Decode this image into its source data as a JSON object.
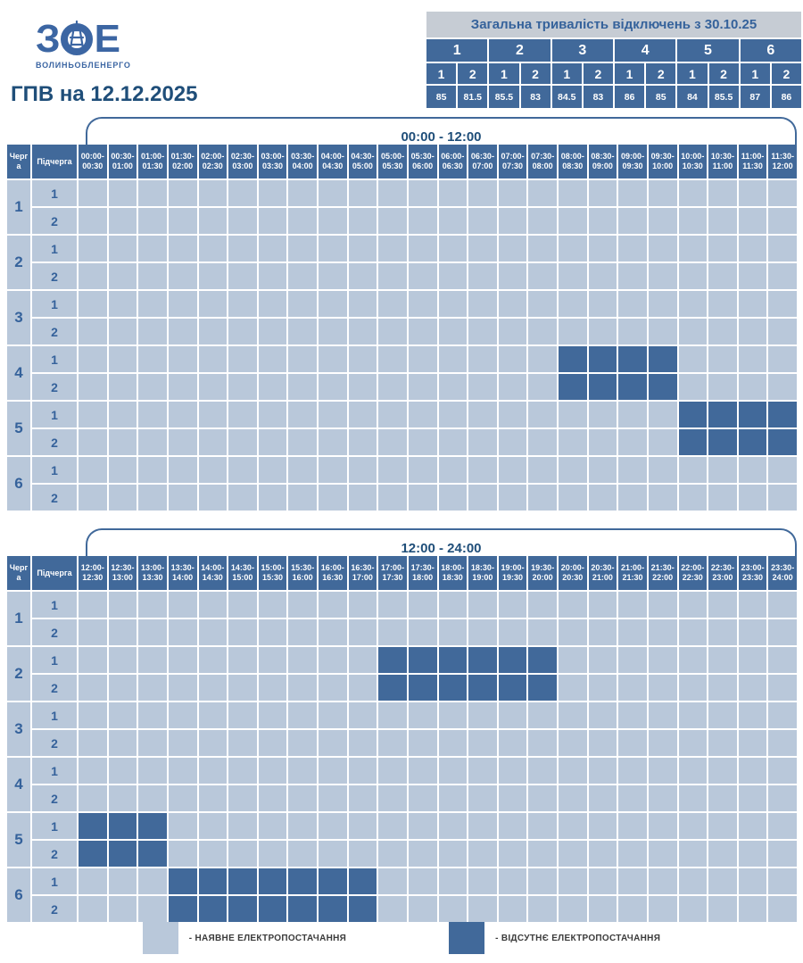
{
  "logo": {
    "letter_left": "З",
    "letter_right": "Е",
    "company": "ВОЛИНЬОБЛЕНЕРГО"
  },
  "title": "ГПВ на 12.12.2025",
  "summary_table": {
    "title": "Загальна тривалість відключень з 30.10.25",
    "queues": [
      "1",
      "2",
      "3",
      "4",
      "5",
      "6"
    ],
    "sub_headers": [
      "1",
      "2",
      "1",
      "2",
      "1",
      "2",
      "1",
      "2",
      "1",
      "2",
      "1",
      "2"
    ],
    "values": [
      "85",
      "81.5",
      "85.5",
      "83",
      "84.5",
      "83",
      "86",
      "85",
      "84",
      "85.5",
      "87",
      "86"
    ]
  },
  "schedule": {
    "corner_headers": {
      "queue": "Черга",
      "subqueue": "Підчерга"
    },
    "grids": [
      {
        "label": "00:00 - 12:00",
        "time_slots": [
          "00:00-00:30",
          "00:30-01:00",
          "01:00-01:30",
          "01:30-02:00",
          "02:00-02:30",
          "02:30-03:00",
          "03:00-03:30",
          "03:30-04:00",
          "04:00-04:30",
          "04:30-05:00",
          "05:00-05:30",
          "05:30-06:00",
          "06:00-06:30",
          "06:30-07:00",
          "07:00-07:30",
          "07:30-08:00",
          "08:00-08:30",
          "08:30-09:00",
          "09:00-09:30",
          "09:30-10:00",
          "10:00-10:30",
          "10:30-11:00",
          "11:00-11:30",
          "11:30-12:00"
        ],
        "rows": [
          {
            "queue": "1",
            "sub": "1",
            "dark": []
          },
          {
            "queue": "1",
            "sub": "2",
            "dark": []
          },
          {
            "queue": "2",
            "sub": "1",
            "dark": []
          },
          {
            "queue": "2",
            "sub": "2",
            "dark": []
          },
          {
            "queue": "3",
            "sub": "1",
            "dark": []
          },
          {
            "queue": "3",
            "sub": "2",
            "dark": []
          },
          {
            "queue": "4",
            "sub": "1",
            "dark": [
              16,
              17,
              18,
              19
            ]
          },
          {
            "queue": "4",
            "sub": "2",
            "dark": [
              16,
              17,
              18,
              19
            ]
          },
          {
            "queue": "5",
            "sub": "1",
            "dark": [
              20,
              21,
              22,
              23
            ]
          },
          {
            "queue": "5",
            "sub": "2",
            "dark": [
              20,
              21,
              22,
              23
            ]
          },
          {
            "queue": "6",
            "sub": "1",
            "dark": []
          },
          {
            "queue": "6",
            "sub": "2",
            "dark": []
          }
        ]
      },
      {
        "label": "12:00 - 24:00",
        "time_slots": [
          "12:00-12:30",
          "12:30-13:00",
          "13:00-13:30",
          "13:30-14:00",
          "14:00-14:30",
          "14:30-15:00",
          "15:00-15:30",
          "15:30-16:00",
          "16:00-16:30",
          "16:30-17:00",
          "17:00-17:30",
          "17:30-18:00",
          "18:00-18:30",
          "18:30-19:00",
          "19:00-19:30",
          "19:30-20:00",
          "20:00-20:30",
          "20:30-21:00",
          "21:00-21:30",
          "21:30-22:00",
          "22:00-22:30",
          "22:30-23:00",
          "23:00-23:30",
          "23:30-24:00"
        ],
        "rows": [
          {
            "queue": "1",
            "sub": "1",
            "dark": []
          },
          {
            "queue": "1",
            "sub": "2",
            "dark": []
          },
          {
            "queue": "2",
            "sub": "1",
            "dark": [
              10,
              11,
              12,
              13,
              14,
              15
            ]
          },
          {
            "queue": "2",
            "sub": "2",
            "dark": [
              10,
              11,
              12,
              13,
              14,
              15
            ]
          },
          {
            "queue": "3",
            "sub": "1",
            "dark": []
          },
          {
            "queue": "3",
            "sub": "2",
            "dark": []
          },
          {
            "queue": "4",
            "sub": "1",
            "dark": []
          },
          {
            "queue": "4",
            "sub": "2",
            "dark": []
          },
          {
            "queue": "5",
            "sub": "1",
            "dark": [
              0,
              1,
              2
            ]
          },
          {
            "queue": "5",
            "sub": "2",
            "dark": [
              0,
              1,
              2
            ]
          },
          {
            "queue": "6",
            "sub": "1",
            "dark": [
              3,
              4,
              5,
              6,
              7,
              8,
              9
            ]
          },
          {
            "queue": "6",
            "sub": "2",
            "dark": [
              3,
              4,
              5,
              6,
              7,
              8,
              9
            ]
          }
        ]
      }
    ]
  },
  "legend": [
    {
      "type": "available",
      "label": "- НАЯВНЕ ЕЛЕКТРОПОСТАЧАННЯ"
    },
    {
      "type": "outage",
      "label": "- ВІДСУТНЄ ЕЛЕКТРОПОСТАЧАННЯ"
    }
  ],
  "colors": {
    "outage": "#41699a",
    "available": "#b9c8da",
    "summary_header_bg": "#c6ccd4",
    "title_text": "#1f4e79",
    "accent_text": "#35629b",
    "logo_blue": "#3c66a3"
  }
}
